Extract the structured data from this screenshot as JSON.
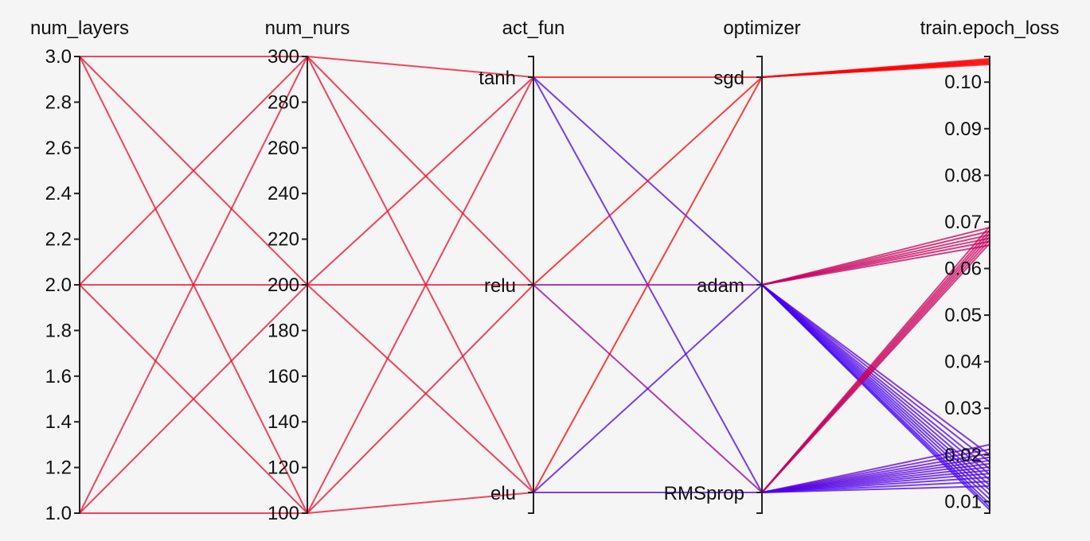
{
  "chart_data": {
    "type": "parallel_coordinates",
    "axes": [
      {
        "key": "num_layers",
        "label": "num_layers",
        "kind": "numeric",
        "range": [
          1.0,
          3.0
        ],
        "ticks": [
          1.0,
          1.2,
          1.4,
          1.6,
          1.8,
          2.0,
          2.2,
          2.4,
          2.6,
          2.8,
          3.0
        ],
        "tick_labels": [
          "1.0",
          "1.2",
          "1.4",
          "1.6",
          "1.8",
          "2.0",
          "2.2",
          "2.4",
          "2.6",
          "2.8",
          "3.0"
        ]
      },
      {
        "key": "num_nurs",
        "label": "num_nurs",
        "kind": "numeric",
        "range": [
          100,
          300
        ],
        "ticks": [
          100,
          120,
          140,
          160,
          180,
          200,
          220,
          240,
          260,
          280,
          300
        ],
        "tick_labels": [
          "100",
          "120",
          "140",
          "160",
          "180",
          "200",
          "220",
          "240",
          "260",
          "280",
          "300"
        ]
      },
      {
        "key": "act_fun",
        "label": "act_fun",
        "kind": "categorical",
        "categories": [
          "elu",
          "relu",
          "tanh"
        ]
      },
      {
        "key": "optimizer",
        "label": "optimizer",
        "kind": "categorical",
        "categories": [
          "RMSprop",
          "adam",
          "sgd"
        ]
      },
      {
        "key": "train_epoch_loss",
        "label": "train.epoch_loss",
        "kind": "numeric",
        "range": [
          0.0075,
          0.1055
        ],
        "ticks": [
          0.01,
          0.02,
          0.03,
          0.04,
          0.05,
          0.06,
          0.07,
          0.08,
          0.09,
          0.1
        ],
        "tick_labels": [
          "0.01",
          "0.02",
          "0.03",
          "0.04",
          "0.05",
          "0.06",
          "0.07",
          "0.08",
          "0.09",
          "0.10"
        ]
      }
    ],
    "color_scale": {
      "by": "train_epoch_loss",
      "low": "#3a00ff",
      "mid": "#c0006a",
      "high": "#ff0000",
      "range": [
        0.0075,
        0.1055
      ]
    },
    "pairs": {
      "num_layers__num_nurs": [
        [
          1.0,
          100
        ],
        [
          1.0,
          200
        ],
        [
          1.0,
          300
        ],
        [
          2.0,
          100
        ],
        [
          2.0,
          200
        ],
        [
          2.0,
          300
        ],
        [
          3.0,
          100
        ],
        [
          3.0,
          200
        ],
        [
          3.0,
          300
        ]
      ],
      "num_nurs__act_fun": [
        [
          "100",
          "tanh"
        ],
        [
          "100",
          "relu"
        ],
        [
          "100",
          "elu"
        ],
        [
          "200",
          "tanh"
        ],
        [
          "200",
          "relu"
        ],
        [
          "200",
          "elu"
        ],
        [
          "300",
          "tanh"
        ],
        [
          "300",
          "relu"
        ],
        [
          "300",
          "elu"
        ]
      ],
      "act_fun__optimizer": [
        [
          "tanh",
          "sgd",
          0.105
        ],
        [
          "tanh",
          "adam",
          0.013
        ],
        [
          "tanh",
          "RMSprop",
          0.012
        ],
        [
          "relu",
          "sgd",
          0.105
        ],
        [
          "relu",
          "adam",
          0.04
        ],
        [
          "relu",
          "RMSprop",
          0.045
        ],
        [
          "elu",
          "sgd",
          0.105
        ],
        [
          "elu",
          "adam",
          0.013
        ],
        [
          "elu",
          "RMSprop",
          0.02
        ]
      ]
    },
    "runs": [
      {
        "optimizer": "sgd",
        "loss": 0.105
      },
      {
        "optimizer": "sgd",
        "loss": 0.1048
      },
      {
        "optimizer": "sgd",
        "loss": 0.1046
      },
      {
        "optimizer": "sgd",
        "loss": 0.1044
      },
      {
        "optimizer": "sgd",
        "loss": 0.1042
      },
      {
        "optimizer": "sgd",
        "loss": 0.104
      },
      {
        "optimizer": "sgd",
        "loss": 0.1038
      },
      {
        "optimizer": "adam",
        "loss": 0.0688
      },
      {
        "optimizer": "adam",
        "loss": 0.068
      },
      {
        "optimizer": "adam",
        "loss": 0.0672
      },
      {
        "optimizer": "adam",
        "loss": 0.0665
      },
      {
        "optimizer": "adam",
        "loss": 0.0658
      },
      {
        "optimizer": "adam",
        "loss": 0.065
      },
      {
        "optimizer": "adam",
        "loss": 0.02
      },
      {
        "optimizer": "adam",
        "loss": 0.0185
      },
      {
        "optimizer": "adam",
        "loss": 0.017
      },
      {
        "optimizer": "adam",
        "loss": 0.0158
      },
      {
        "optimizer": "adam",
        "loss": 0.0146
      },
      {
        "optimizer": "adam",
        "loss": 0.0135
      },
      {
        "optimizer": "adam",
        "loss": 0.0125
      },
      {
        "optimizer": "adam",
        "loss": 0.0115
      },
      {
        "optimizer": "adam",
        "loss": 0.0105
      },
      {
        "optimizer": "adam",
        "loss": 0.0095
      },
      {
        "optimizer": "adam",
        "loss": 0.0088
      },
      {
        "optimizer": "adam",
        "loss": 0.0082
      },
      {
        "optimizer": "RMSprop",
        "loss": 0.069
      },
      {
        "optimizer": "RMSprop",
        "loss": 0.0682
      },
      {
        "optimizer": "RMSprop",
        "loss": 0.0675
      },
      {
        "optimizer": "RMSprop",
        "loss": 0.0668
      },
      {
        "optimizer": "RMSprop",
        "loss": 0.0661
      },
      {
        "optimizer": "RMSprop",
        "loss": 0.0654
      },
      {
        "optimizer": "RMSprop",
        "loss": 0.0222
      },
      {
        "optimizer": "RMSprop",
        "loss": 0.0212
      },
      {
        "optimizer": "RMSprop",
        "loss": 0.0203
      },
      {
        "optimizer": "RMSprop",
        "loss": 0.0195
      },
      {
        "optimizer": "RMSprop",
        "loss": 0.0188
      },
      {
        "optimizer": "RMSprop",
        "loss": 0.0181
      },
      {
        "optimizer": "RMSprop",
        "loss": 0.0174
      },
      {
        "optimizer": "RMSprop",
        "loss": 0.0167
      },
      {
        "optimizer": "RMSprop",
        "loss": 0.016
      },
      {
        "optimizer": "RMSprop",
        "loss": 0.0152
      },
      {
        "optimizer": "RMSprop",
        "loss": 0.0143
      },
      {
        "optimizer": "RMSprop",
        "loss": 0.0133
      }
    ]
  }
}
